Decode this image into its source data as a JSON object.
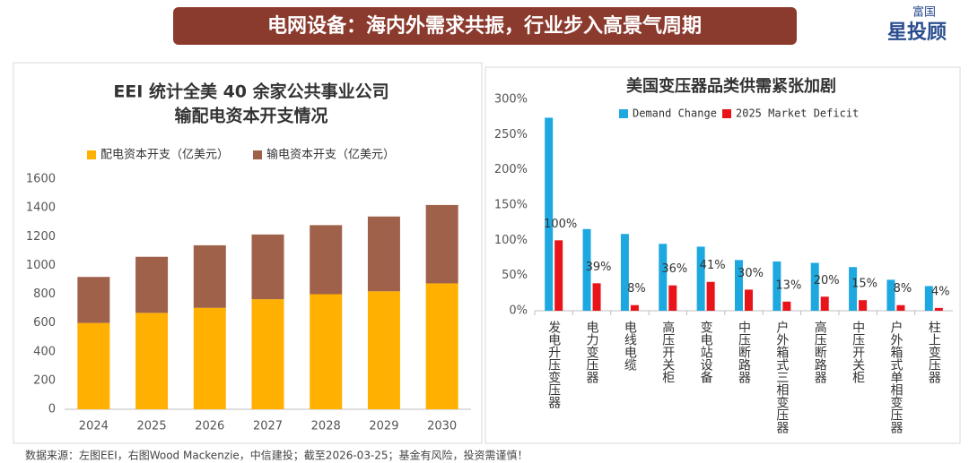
{
  "header": {
    "title": "电网设备：海内外需求共振，行业步入高景气周期"
  },
  "logo": {
    "top": "富国",
    "bottom": "星投顾"
  },
  "footer": "数据来源：左图EEI，右图Wood Mackenzie，中信建投；截至2026-03-25；基金有风险，投资需谨慎！",
  "chart_data": [
    {
      "type": "bar",
      "stacked": true,
      "title": [
        "EEI 统计全美 40 余家公共事业公司",
        "输配电资本开支情况"
      ],
      "categories": [
        "2024",
        "2025",
        "2026",
        "2027",
        "2028",
        "2029",
        "2030"
      ],
      "series": [
        {
          "name": "配电资本开支（亿美元）",
          "color": "#ffb000",
          "values": [
            600,
            670,
            705,
            765,
            800,
            820,
            875
          ]
        },
        {
          "name": "输电资本开支（亿美元）",
          "color": "#a0614a",
          "values": [
            320,
            390,
            435,
            450,
            480,
            520,
            545
          ]
        }
      ],
      "ylim": [
        0,
        1600
      ],
      "yticks": [
        0,
        200,
        400,
        600,
        800,
        1000,
        1200,
        1400,
        1600
      ],
      "grid": false
    },
    {
      "type": "bar",
      "stacked": false,
      "title": [
        "美国变压器品类供需紧张加剧"
      ],
      "categories": [
        "发电升压变压器",
        "电力变压器",
        "电线电缆",
        "高压开关柜",
        "变电站设备",
        "中压断路器",
        "户外箱式三相变压器",
        "高压断路器",
        "中压开关柜",
        "户外箱式单相变压器",
        "柱上变压器"
      ],
      "series": [
        {
          "name": "Demand Change",
          "color": "#1ea8e0",
          "values": [
            274,
            116,
            109,
            95,
            91,
            72,
            70,
            68,
            62,
            44,
            35
          ]
        },
        {
          "name": "2025 Market Deficit",
          "color": "#e8141a",
          "values": [
            100,
            39,
            8,
            36,
            41,
            30,
            13,
            20,
            15,
            8,
            4
          ],
          "value_labels": [
            "100%",
            "39%",
            "8%",
            "36%",
            "41%",
            "30%",
            "13%",
            "20%",
            "15%",
            "8%",
            "4%"
          ]
        }
      ],
      "ylim": [
        0,
        300
      ],
      "yticks": [
        {
          "value": 0,
          "label": "0%"
        },
        {
          "value": 50,
          "label": "50%"
        },
        {
          "value": 100,
          "label": "100%"
        },
        {
          "value": 150,
          "label": "150%"
        },
        {
          "value": 200,
          "label": "200%"
        },
        {
          "value": 250,
          "label": "250%"
        },
        {
          "value": 300,
          "label": "300%"
        }
      ],
      "grid": false
    }
  ]
}
